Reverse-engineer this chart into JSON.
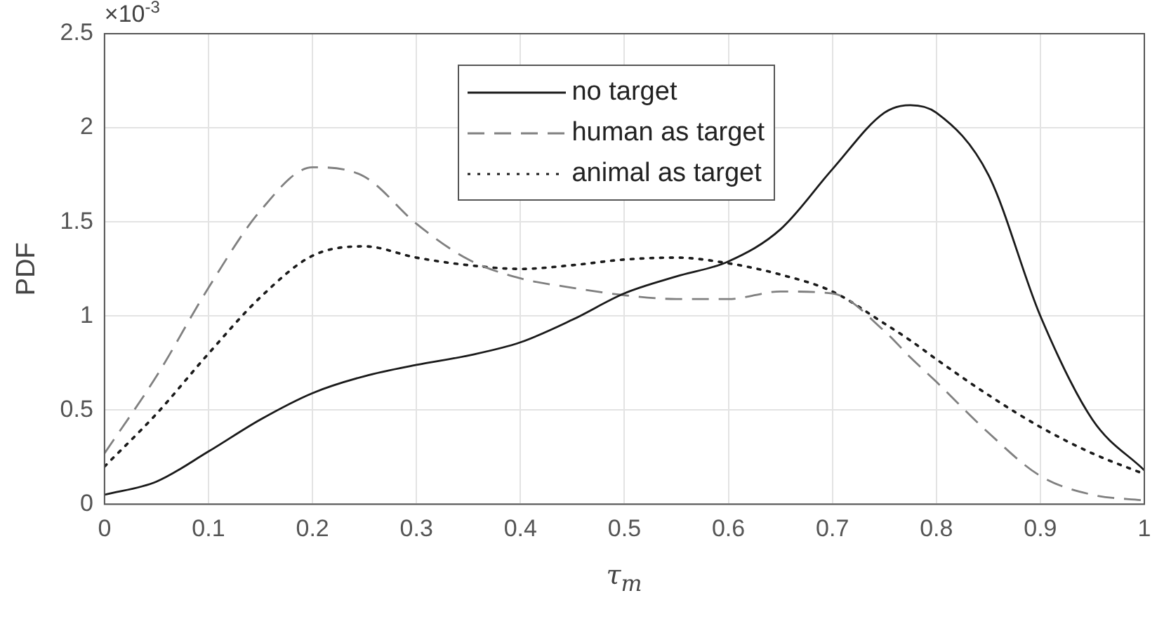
{
  "chart_data": {
    "type": "line",
    "xlabel": "τ$_{m}$",
    "ylabel": "PDF",
    "annotations": [
      "×10$^{-3}$"
    ],
    "x": [
      0,
      0.05,
      0.1,
      0.15,
      0.2,
      0.25,
      0.3,
      0.35,
      0.4,
      0.45,
      0.5,
      0.55,
      0.6,
      0.65,
      0.7,
      0.75,
      0.775,
      0.8,
      0.85,
      0.9,
      0.95,
      1
    ],
    "series": [
      {
        "name": "no target",
        "color": "#1a1a1a",
        "line_style": "solid",
        "values": [
          0.05,
          0.12,
          0.28,
          0.45,
          0.59,
          0.68,
          0.74,
          0.79,
          0.86,
          0.98,
          1.12,
          1.21,
          1.29,
          1.46,
          1.78,
          2.08,
          2.12,
          2.08,
          1.75,
          1.0,
          0.45,
          0.18
        ]
      },
      {
        "name": "human as target",
        "color": "#808080",
        "line_style": "dashed",
        "values": [
          0.27,
          0.68,
          1.15,
          1.56,
          1.79,
          1.74,
          1.49,
          1.3,
          1.2,
          1.15,
          1.11,
          1.09,
          1.09,
          1.13,
          1.12,
          0.92,
          0.78,
          0.65,
          0.38,
          0.15,
          0.05,
          0.02
        ]
      },
      {
        "name": "animal as target",
        "color": "#1a1a1a",
        "line_style": "dotted",
        "values": [
          0.2,
          0.48,
          0.8,
          1.1,
          1.32,
          1.37,
          1.31,
          1.27,
          1.25,
          1.27,
          1.3,
          1.31,
          1.28,
          1.22,
          1.13,
          0.96,
          0.87,
          0.77,
          0.58,
          0.41,
          0.27,
          0.16
        ]
      }
    ],
    "xlim": [
      0,
      1
    ],
    "xticks": [
      0,
      0.1,
      0.2,
      0.3,
      0.4,
      0.5,
      0.6,
      0.7,
      0.8,
      0.9,
      1
    ],
    "ylim": [
      0,
      2.5
    ],
    "yticks": [
      0,
      0.5,
      1,
      1.5,
      2,
      2.5
    ],
    "grid": true,
    "legend": "top",
    "marker": "none"
  }
}
